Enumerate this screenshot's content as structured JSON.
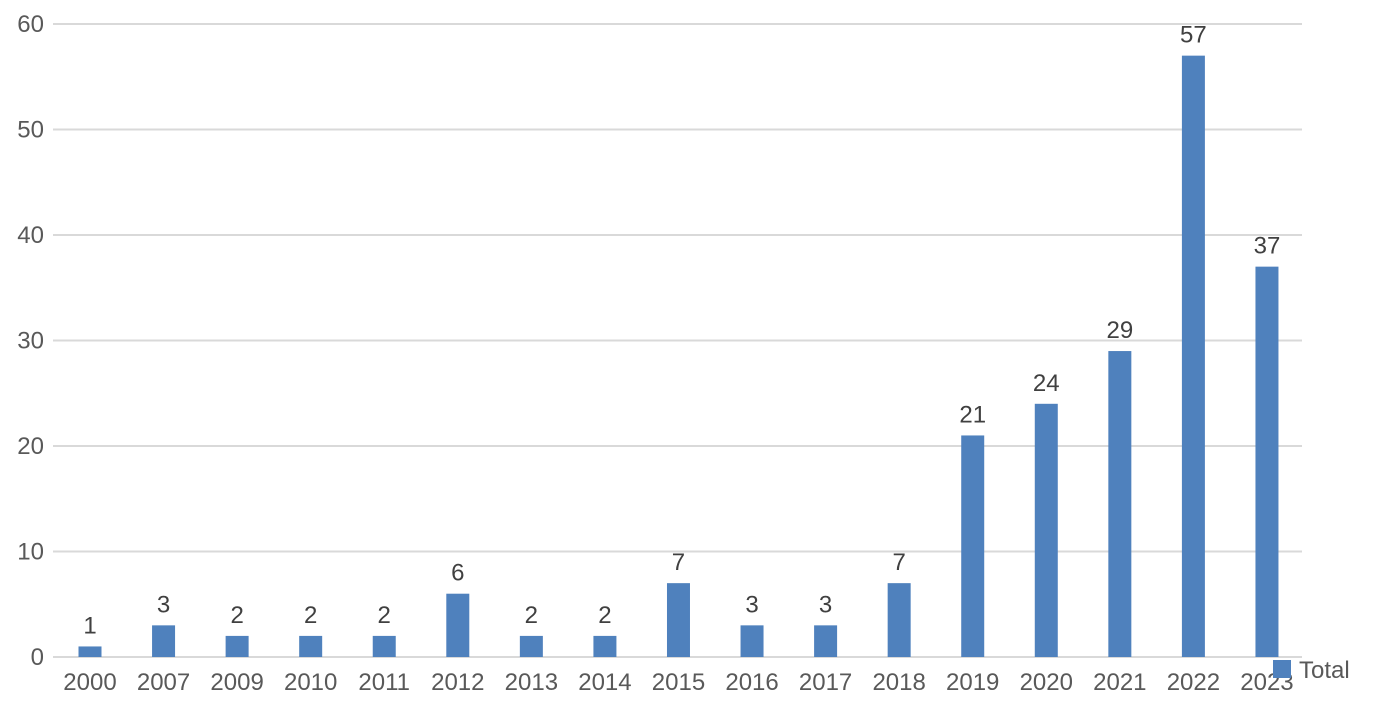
{
  "chart_data": {
    "type": "bar",
    "categories": [
      "2000",
      "2007",
      "2009",
      "2010",
      "2011",
      "2012",
      "2013",
      "2014",
      "2015",
      "2016",
      "2017",
      "2018",
      "2019",
      "2020",
      "2021",
      "2022",
      "2023"
    ],
    "series": [
      {
        "name": "Total",
        "values": [
          1,
          3,
          2,
          2,
          2,
          6,
          2,
          2,
          7,
          3,
          3,
          7,
          21,
          24,
          29,
          57,
          37
        ],
        "color": "#4f81bd"
      }
    ],
    "ylim": [
      0,
      60
    ],
    "yticks": [
      0,
      10,
      20,
      30,
      40,
      50,
      60
    ],
    "grid": true,
    "legend_position": "bottom-right",
    "data_labels": true,
    "title": "",
    "xlabel": "",
    "ylabel": ""
  }
}
